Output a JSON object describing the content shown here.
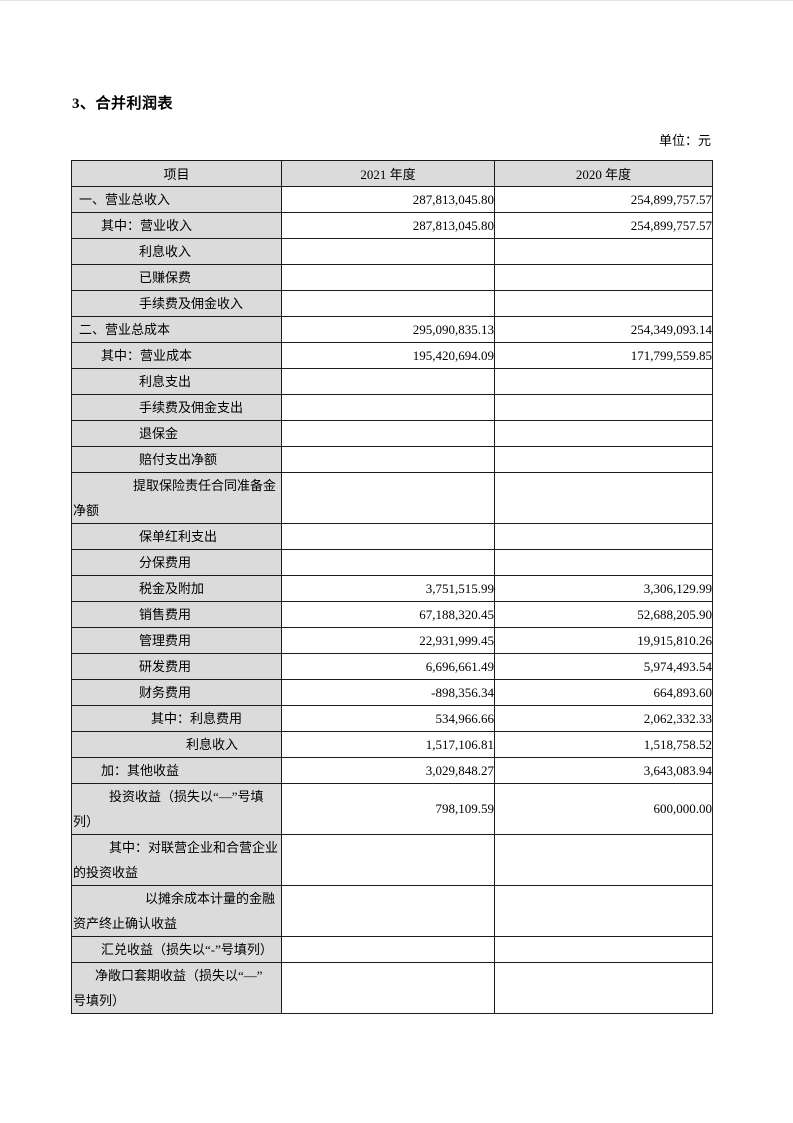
{
  "page": {
    "title": "3、合并利润表",
    "unit_label": "单位：元"
  },
  "table": {
    "headers": [
      "项目",
      "2021 年度",
      "2020 年度"
    ],
    "rows": [
      {
        "label": "一、营业总收入",
        "indent": 6,
        "y2021": "287,813,045.80",
        "y2020": "254,899,757.57"
      },
      {
        "label": "其中：营业收入",
        "indent": 28,
        "y2021": "287,813,045.80",
        "y2020": "254,899,757.57"
      },
      {
        "label": "利息收入",
        "indent": 66,
        "y2021": "",
        "y2020": ""
      },
      {
        "label": "已赚保费",
        "indent": 66,
        "y2021": "",
        "y2020": ""
      },
      {
        "label": "手续费及佣金收入",
        "indent": 66,
        "y2021": "",
        "y2020": ""
      },
      {
        "label": "二、营业总成本",
        "indent": 6,
        "y2021": "295,090,835.13",
        "y2020": "254,349,093.14"
      },
      {
        "label": "其中：营业成本",
        "indent": 28,
        "y2021": "195,420,694.09",
        "y2020": "171,799,559.85"
      },
      {
        "label": "利息支出",
        "indent": 66,
        "y2021": "",
        "y2020": ""
      },
      {
        "label": "手续费及佣金支出",
        "indent": 66,
        "y2021": "",
        "y2020": ""
      },
      {
        "label": "退保金",
        "indent": 66,
        "y2021": "",
        "y2020": ""
      },
      {
        "label": "赔付支出净额",
        "indent": 66,
        "y2021": "",
        "y2020": ""
      },
      {
        "label": "提取保险责任合同准备金\n净额",
        "indent": 60,
        "y2021": "",
        "y2020": ""
      },
      {
        "label": "保单红利支出",
        "indent": 66,
        "y2021": "",
        "y2020": ""
      },
      {
        "label": "分保费用",
        "indent": 66,
        "y2021": "",
        "y2020": ""
      },
      {
        "label": "税金及附加",
        "indent": 66,
        "y2021": "3,751,515.99",
        "y2020": "3,306,129.99"
      },
      {
        "label": "销售费用",
        "indent": 66,
        "y2021": "67,188,320.45",
        "y2020": "52,688,205.90"
      },
      {
        "label": "管理费用",
        "indent": 66,
        "y2021": "22,931,999.45",
        "y2020": "19,915,810.26"
      },
      {
        "label": "研发费用",
        "indent": 66,
        "y2021": "6,696,661.49",
        "y2020": "5,974,493.54"
      },
      {
        "label": "财务费用",
        "indent": 66,
        "y2021": "-898,356.34",
        "y2020": "664,893.60"
      },
      {
        "label": "其中：利息费用",
        "indent": 78,
        "y2021": "534,966.66",
        "y2020": "2,062,332.33"
      },
      {
        "label": "利息收入",
        "indent": 113,
        "y2021": "1,517,106.81",
        "y2020": "1,518,758.52"
      },
      {
        "label": "加：其他收益",
        "indent": 28,
        "y2021": "3,029,848.27",
        "y2020": "3,643,083.94"
      },
      {
        "label": "投资收益（损失以“—”号填\n列）",
        "indent": 36,
        "y2021": "798,109.59",
        "y2020": "600,000.00"
      },
      {
        "label": "其中：对联营企业和合营企业\n的投资收益",
        "indent": 36,
        "y2021": "",
        "y2020": ""
      },
      {
        "label": "以摊余成本计量的金融\n资产终止确认收益",
        "indent": 72,
        "y2021": "",
        "y2020": ""
      },
      {
        "label": "汇兑收益（损失以“-”号填列）",
        "indent": 28,
        "y2021": "",
        "y2020": ""
      },
      {
        "label": "净敞口套期收益（损失以“—”\n号填列）",
        "indent": 22,
        "y2021": "",
        "y2020": ""
      }
    ]
  }
}
